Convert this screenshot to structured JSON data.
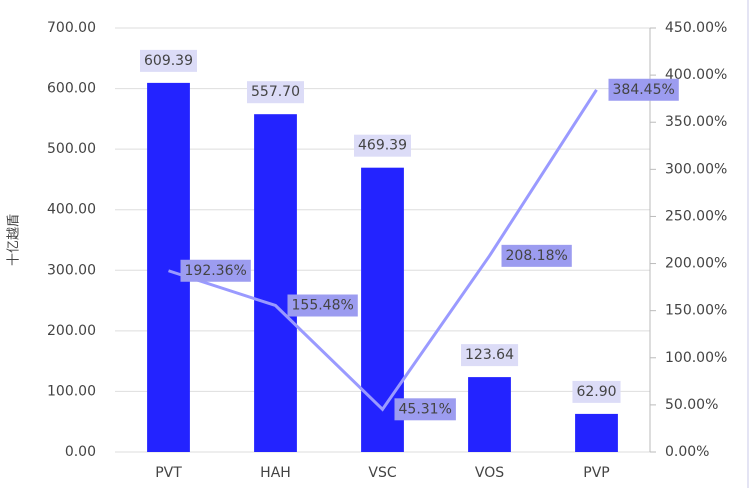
{
  "chart_data": {
    "type": "bar_line",
    "y_label": "十亿越盾",
    "categories": [
      "PVT",
      "HAH",
      "VSC",
      "VOS",
      "PVP"
    ],
    "series": [
      {
        "name": "bar",
        "type": "bar",
        "color": "#2323ff",
        "values": [
          609.39,
          557.7,
          469.39,
          123.64,
          62.9
        ],
        "value_labels": [
          "609.39",
          "557.70",
          "469.39",
          "123.64",
          "62.90"
        ]
      },
      {
        "name": "line",
        "type": "line",
        "axis": "y2",
        "color": "#9a9aff",
        "values": [
          192.36,
          155.48,
          45.31,
          208.18,
          384.45
        ],
        "value_labels": [
          "192.36%",
          "155.48%",
          "45.31%",
          "208.18%",
          "384.45%"
        ]
      }
    ],
    "ylim": [
      0,
      700
    ],
    "yticks": [
      {
        "value": 0,
        "label": "0.00"
      },
      {
        "value": 100,
        "label": "100.00"
      },
      {
        "value": 200,
        "label": "200.00"
      },
      {
        "value": 300,
        "label": "300.00"
      },
      {
        "value": 400,
        "label": "400.00"
      },
      {
        "value": 500,
        "label": "500.00"
      },
      {
        "value": 600,
        "label": "600.00"
      },
      {
        "value": 700,
        "label": "700.00"
      }
    ],
    "y2lim": [
      0,
      450
    ],
    "y2ticks": [
      {
        "value": 0,
        "label": "0.00%"
      },
      {
        "value": 50,
        "label": "50.00%"
      },
      {
        "value": 100,
        "label": "100.00%"
      },
      {
        "value": 150,
        "label": "150.00%"
      },
      {
        "value": 200,
        "label": "200.00%"
      },
      {
        "value": 250,
        "label": "250.00%"
      },
      {
        "value": 300,
        "label": "300.00%"
      },
      {
        "value": 350,
        "label": "350.00%"
      },
      {
        "value": 400,
        "label": "400.00%"
      },
      {
        "value": 450,
        "label": "450.00%"
      }
    ],
    "grid": true
  }
}
